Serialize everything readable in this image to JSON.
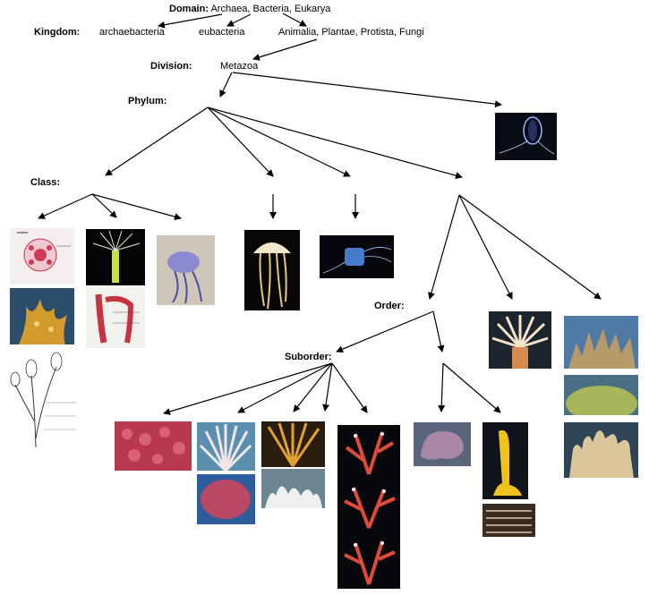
{
  "levels": {
    "domain": {
      "label": "Domain:",
      "value": "Archaea, Bacteria, Eukarya"
    },
    "kingdom": {
      "label": "Kingdom:",
      "items": [
        "archaebacteria",
        "eubacteria",
        "Animalia, Plantae, Protista, Fungi"
      ]
    },
    "division": {
      "label": "Division:",
      "value": "Metazoa"
    },
    "phylum": {
      "label": "Phylum:"
    },
    "class": {
      "label": "Class:"
    },
    "order": {
      "label": "Order:"
    },
    "suborder": {
      "label": "Suborder:"
    }
  },
  "photo_colors": {
    "dark": "#0b0b14",
    "coral_red": "#c8465a",
    "pink": "#e7b7c3",
    "orange": "#d68a2a",
    "blue": "#3a78c8",
    "yellow": "#e8c21a",
    "green": "#8aa65a",
    "beige": "#d8c7a2"
  }
}
